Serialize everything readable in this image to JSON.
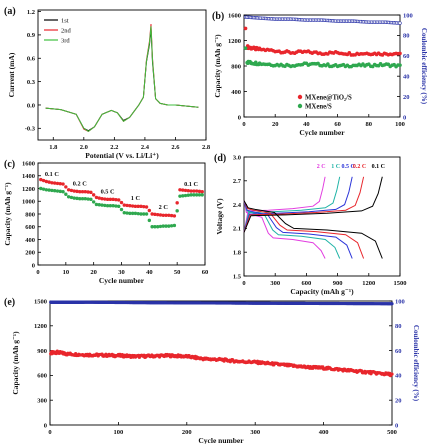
{
  "figure": {
    "panel_labels": [
      "(a)",
      "(b)",
      "(c)",
      "(d)",
      "(e)"
    ]
  },
  "chart_data": [
    {
      "panel": "(a)",
      "type": "line",
      "xlabel": "Potential (V vs. Li/Li⁺)",
      "ylabel": "Current (mA)",
      "xlim": [
        1.7,
        2.8
      ],
      "ylim": [
        -0.45,
        1.22
      ],
      "xticks": [
        "1.8",
        "2.0",
        "2.2",
        "2.4",
        "2.6",
        "2.8"
      ],
      "yticks": [
        "-0.3",
        "0.0",
        "0.3",
        "0.6",
        "0.9",
        "1.2"
      ],
      "xtick_values": [
        1.8,
        2.0,
        2.2,
        2.4,
        2.6,
        2.8
      ],
      "ytick_values": [
        -0.3,
        0.0,
        0.3,
        0.6,
        0.9,
        1.2
      ],
      "legend": [
        "1st",
        "2nd",
        "3rd"
      ],
      "legend_position": "top-left",
      "colors": [
        "#000000",
        "#e8262c",
        "#3fbf3f"
      ],
      "series": [
        {
          "name": "1st",
          "x": [
            1.75,
            1.85,
            1.95,
            2.0,
            2.03,
            2.07,
            2.12,
            2.18,
            2.22,
            2.26,
            2.3,
            2.33,
            2.36,
            2.39,
            2.41,
            2.43,
            2.44,
            2.45,
            2.47,
            2.5,
            2.55,
            2.6,
            2.65,
            2.7,
            2.75
          ],
          "y": [
            -0.04,
            -0.06,
            -0.12,
            -0.3,
            -0.33,
            -0.28,
            -0.12,
            -0.07,
            -0.1,
            -0.2,
            -0.16,
            -0.08,
            0.0,
            0.1,
            0.55,
            0.78,
            0.98,
            0.55,
            0.08,
            0.02,
            0.0,
            0.0,
            -0.01,
            -0.02,
            -0.03
          ]
        },
        {
          "name": "2nd",
          "x": [
            1.75,
            1.85,
            1.95,
            2.0,
            2.03,
            2.07,
            2.12,
            2.18,
            2.22,
            2.26,
            2.3,
            2.33,
            2.36,
            2.39,
            2.41,
            2.43,
            2.44,
            2.45,
            2.47,
            2.5,
            2.55,
            2.6,
            2.65,
            2.7,
            2.75
          ],
          "y": [
            -0.04,
            -0.06,
            -0.12,
            -0.31,
            -0.34,
            -0.28,
            -0.12,
            -0.07,
            -0.1,
            -0.21,
            -0.16,
            -0.08,
            0.0,
            0.1,
            0.57,
            0.82,
            1.04,
            0.6,
            0.08,
            0.02,
            0.0,
            0.0,
            -0.01,
            -0.02,
            -0.03
          ]
        },
        {
          "name": "3rd",
          "x": [
            1.75,
            1.85,
            1.95,
            2.0,
            2.03,
            2.07,
            2.12,
            2.18,
            2.22,
            2.26,
            2.3,
            2.33,
            2.36,
            2.39,
            2.41,
            2.43,
            2.44,
            2.45,
            2.47,
            2.5,
            2.55,
            2.6,
            2.65,
            2.7,
            2.75
          ],
          "y": [
            -0.04,
            -0.06,
            -0.12,
            -0.3,
            -0.34,
            -0.28,
            -0.12,
            -0.07,
            -0.1,
            -0.21,
            -0.16,
            -0.08,
            0.0,
            0.1,
            0.56,
            0.8,
            1.01,
            0.58,
            0.08,
            0.02,
            0.0,
            0.0,
            -0.01,
            -0.02,
            -0.03
          ]
        }
      ]
    },
    {
      "panel": "(b)",
      "type": "scatter",
      "xlabel": "Cycle number",
      "ylabel": "Capacity (mAh g⁻¹)",
      "y2label": "Coulombic efficiency (%)",
      "xlim": [
        0,
        100
      ],
      "ylim": [
        0,
        1600
      ],
      "y2lim": [
        0,
        100
      ],
      "xticks": [
        "0",
        "20",
        "40",
        "60",
        "80",
        "100"
      ],
      "yticks": [
        "0",
        "400",
        "800",
        "1200",
        "1600"
      ],
      "y2ticks": [
        "0",
        "20",
        "40",
        "60",
        "80",
        "100"
      ],
      "xtick_values": [
        0,
        20,
        40,
        60,
        80,
        100
      ],
      "ytick_values": [
        0,
        400,
        800,
        1200,
        1600
      ],
      "y2tick_values": [
        0,
        20,
        40,
        60,
        80,
        100
      ],
      "legend": [
        "MXene@TiO₂/S",
        "MXene/S"
      ],
      "legend_position": "bottom-left",
      "colors": [
        "#e8262c",
        "#2fa84f",
        "#2a33a8"
      ],
      "series": [
        {
          "name": "MXene@TiO₂/S",
          "x": [
            1,
            2,
            5,
            10,
            20,
            30,
            40,
            50,
            60,
            70,
            80,
            90,
            100
          ],
          "y": [
            1390,
            1100,
            1080,
            1060,
            1040,
            1010,
            1020,
            1000,
            1010,
            990,
            1000,
            990,
            1000
          ]
        },
        {
          "name": "MXene/S",
          "x": [
            1,
            2,
            5,
            10,
            20,
            30,
            40,
            50,
            60,
            70,
            80,
            90,
            100
          ],
          "y": [
            1080,
            860,
            850,
            840,
            820,
            810,
            830,
            820,
            800,
            810,
            810,
            820,
            800
          ]
        },
        {
          "name": "Coulombic efficiency",
          "axis": "y2",
          "x": [
            1,
            10,
            20,
            30,
            40,
            50,
            60,
            70,
            80,
            90,
            100
          ],
          "y": [
            98,
            97,
            96,
            96,
            95,
            95,
            94,
            94,
            93,
            93,
            92
          ]
        }
      ]
    },
    {
      "panel": "(c)",
      "type": "scatter",
      "xlabel": "Cycle number",
      "ylabel": "Capacity (mAh g⁻¹)",
      "xlim": [
        0,
        60
      ],
      "ylim": [
        0,
        1600
      ],
      "xticks": [
        "0",
        "10",
        "20",
        "30",
        "40",
        "50",
        "60"
      ],
      "yticks": [
        "0",
        "200",
        "400",
        "600",
        "800",
        "1000",
        "1200",
        "1400",
        "1600"
      ],
      "xtick_values": [
        0,
        10,
        20,
        30,
        40,
        50,
        60
      ],
      "ytick_values": [
        0,
        200,
        400,
        600,
        800,
        1000,
        1200,
        1400,
        1600
      ],
      "annotations": [
        {
          "text": "0.1 C",
          "x": 5,
          "y": 1400
        },
        {
          "text": "0.2 C",
          "x": 15,
          "y": 1250
        },
        {
          "text": "0.5 C",
          "x": 25,
          "y": 1120
        },
        {
          "text": "1 C",
          "x": 35,
          "y": 1020
        },
        {
          "text": "2 C",
          "x": 45,
          "y": 880
        },
        {
          "text": "0.1 C",
          "x": 55,
          "y": 1240
        }
      ],
      "colors": [
        "#e8262c",
        "#2fa84f"
      ],
      "series": [
        {
          "name": "",
          "x": [
            1,
            3,
            5,
            7,
            9,
            11,
            13,
            15,
            17,
            19,
            21,
            23,
            25,
            27,
            29,
            31,
            33,
            35,
            37,
            39,
            41,
            43,
            45,
            47,
            49,
            51,
            53,
            55,
            57,
            59
          ],
          "y": [
            1340,
            1310,
            1290,
            1280,
            1270,
            1180,
            1160,
            1150,
            1150,
            1140,
            1060,
            1040,
            1030,
            1030,
            1020,
            940,
            930,
            920,
            920,
            910,
            800,
            790,
            780,
            780,
            770,
            1180,
            1170,
            1160,
            1160,
            1150
          ]
        },
        {
          "name": "",
          "x": [
            1,
            3,
            5,
            7,
            9,
            11,
            13,
            15,
            17,
            19,
            21,
            23,
            25,
            27,
            29,
            31,
            33,
            35,
            37,
            39,
            41,
            43,
            45,
            47,
            49,
            51,
            53,
            55,
            57,
            59
          ],
          "y": [
            1200,
            1180,
            1170,
            1160,
            1150,
            1070,
            1050,
            1040,
            1040,
            1030,
            950,
            940,
            930,
            930,
            920,
            820,
            810,
            810,
            800,
            800,
            600,
            600,
            610,
            610,
            620,
            1080,
            1090,
            1100,
            1100,
            1100
          ]
        }
      ]
    },
    {
      "panel": "(d)",
      "type": "line",
      "xlabel": "Capacity (mAh g⁻¹)",
      "ylabel": "Voltage (V)",
      "xlim": [
        0,
        1500
      ],
      "ylim": [
        1.5,
        3.0
      ],
      "xticks": [
        "0",
        "300",
        "600",
        "900",
        "1200",
        "1500"
      ],
      "yticks": [
        "1.5",
        "1.8",
        "2.1",
        "2.4",
        "2.7",
        "3.0"
      ],
      "xtick_values": [
        0,
        300,
        600,
        900,
        1200,
        1500
      ],
      "ytick_values": [
        1.5,
        1.8,
        2.1,
        2.4,
        2.7,
        3.0
      ],
      "legend": [
        "2 C",
        "1 C",
        "0.5 C",
        "0.2 C",
        "0.1 C"
      ],
      "legend_position": "top",
      "colors": [
        "#e23ee0",
        "#1fb3a6",
        "#2a33d8",
        "#e8262c",
        "#000000"
      ],
      "series": [
        {
          "name": "2 C",
          "capacity": 780,
          "charge_plateau": 2.32,
          "discharge_high": 2.28,
          "discharge_low": 1.98,
          "cutoff_low": 1.72,
          "cutoff_high": 2.75
        },
        {
          "name": "1 C",
          "capacity": 920,
          "charge_plateau": 2.3,
          "discharge_high": 2.3,
          "discharge_low": 2.02,
          "cutoff_low": 1.72,
          "cutoff_high": 2.75
        },
        {
          "name": "0.5 C",
          "capacity": 1040,
          "charge_plateau": 2.28,
          "discharge_high": 2.31,
          "discharge_low": 2.05,
          "cutoff_low": 1.72,
          "cutoff_high": 2.75
        },
        {
          "name": "0.2 C",
          "capacity": 1150,
          "charge_plateau": 2.27,
          "discharge_high": 2.33,
          "discharge_low": 2.08,
          "cutoff_low": 1.72,
          "cutoff_high": 2.75
        },
        {
          "name": "0.1 C",
          "capacity": 1330,
          "charge_plateau": 2.26,
          "discharge_high": 2.34,
          "discharge_low": 2.1,
          "cutoff_low": 1.72,
          "cutoff_high": 2.75
        }
      ]
    },
    {
      "panel": "(e)",
      "type": "scatter",
      "xlabel": "Cycle number",
      "ylabel": "Capacity (mAh g⁻¹)",
      "y2label": "Coulombic efficiency (%)",
      "xlim": [
        0,
        500
      ],
      "ylim": [
        0,
        1500
      ],
      "y2lim": [
        0,
        100
      ],
      "xticks": [
        "0",
        "100",
        "200",
        "300",
        "400",
        "500"
      ],
      "yticks": [
        "0",
        "300",
        "600",
        "900",
        "1200",
        "1500"
      ],
      "y2ticks": [
        "0",
        "20",
        "40",
        "60",
        "80",
        "100"
      ],
      "xtick_values": [
        0,
        100,
        200,
        300,
        400,
        500
      ],
      "ytick_values": [
        0,
        300,
        600,
        900,
        1200,
        1500
      ],
      "y2tick_values": [
        0,
        20,
        40,
        60,
        80,
        100
      ],
      "colors": [
        "#e8262c",
        "#2a33a8"
      ],
      "series": [
        {
          "name": "",
          "x": [
            1,
            10,
            25,
            50,
            75,
            100,
            125,
            150,
            175,
            200,
            225,
            250,
            275,
            300,
            325,
            350,
            375,
            400,
            425,
            450,
            475,
            500
          ],
          "y": [
            870,
            880,
            860,
            850,
            845,
            840,
            830,
            835,
            840,
            830,
            800,
            790,
            770,
            760,
            740,
            720,
            700,
            690,
            670,
            650,
            630,
            610
          ]
        },
        {
          "name": "",
          "axis": "y2",
          "x": [
            1,
            25,
            50,
            100,
            150,
            200,
            250,
            300,
            350,
            400,
            450,
            500
          ],
          "y": [
            99,
            99,
            99,
            98.8,
            98.6,
            98.5,
            98.4,
            98.2,
            98.1,
            98,
            97.9,
            97.8
          ]
        }
      ]
    }
  ]
}
